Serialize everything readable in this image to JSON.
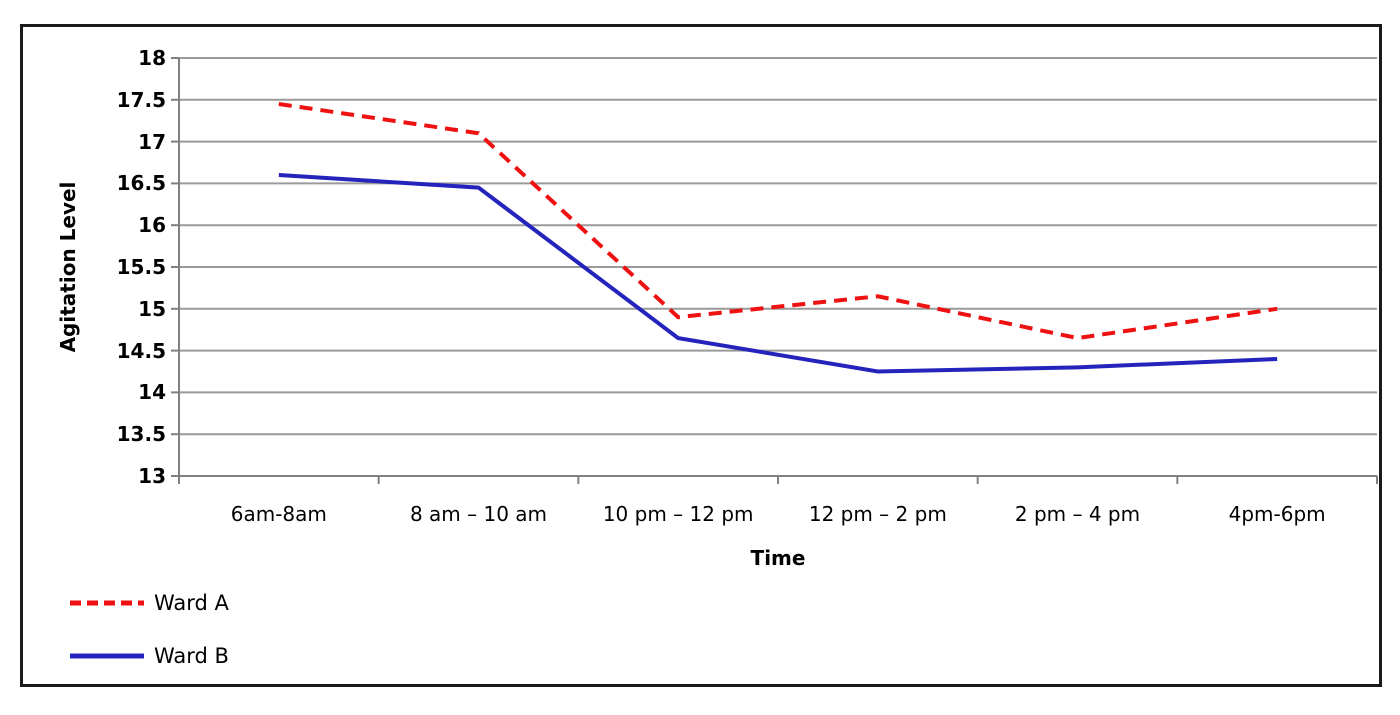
{
  "chart_data": {
    "type": "line",
    "title": "",
    "xlabel": "Time",
    "ylabel": "Agitation Level",
    "categories": [
      "6am-8am",
      "8 am – 10 am",
      "10 pm – 12 pm",
      "12 pm – 2 pm",
      "2 pm – 4 pm",
      "4pm-6pm"
    ],
    "series": [
      {
        "name": "Ward A",
        "color": "#ee1111",
        "style": "dashed",
        "values": [
          17.45,
          17.1,
          14.9,
          15.15,
          14.65,
          15.0
        ]
      },
      {
        "name": "Ward B",
        "color": "#2424bd",
        "style": "solid",
        "values": [
          16.6,
          16.45,
          14.65,
          14.25,
          14.3,
          14.4
        ]
      }
    ],
    "ylim": [
      13,
      18
    ],
    "yticks": [
      13,
      13.5,
      14,
      14.5,
      15,
      15.5,
      16,
      16.5,
      17,
      17.5,
      18
    ],
    "grid": "horizontal",
    "legend_position": "bottom-left",
    "axis_color": "#808080",
    "gridline_color": "#9a9a9a",
    "frame_color": "#1a1a1a",
    "text_color": "#000000"
  }
}
